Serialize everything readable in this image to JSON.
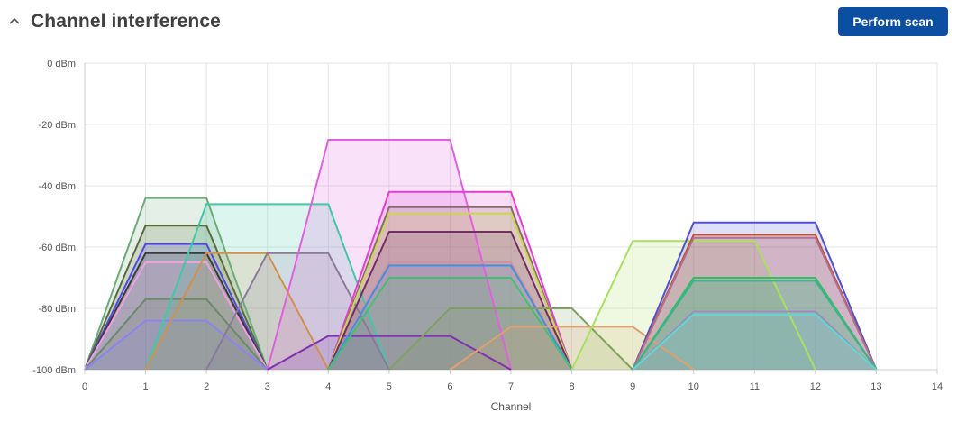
{
  "header": {
    "title": "Channel interference",
    "collapse_icon": "chevron-up-icon",
    "scan_button_label": "Perform scan",
    "scan_button_color": "#0b4ea2"
  },
  "chart_data": {
    "type": "area",
    "title": "",
    "xlabel": "Channel",
    "ylabel": "",
    "xlim": [
      0,
      14
    ],
    "ylim": [
      -100,
      0
    ],
    "x_ticks": [
      "0",
      "1",
      "2",
      "3",
      "4",
      "5",
      "6",
      "7",
      "8",
      "9",
      "10",
      "11",
      "12",
      "13",
      "14"
    ],
    "y_ticks": [
      "0 dBm",
      "-20 dBm",
      "-40 dBm",
      "-60 dBm",
      "-80 dBm",
      "-100 dBm"
    ],
    "y_tick_values": [
      0,
      -20,
      -40,
      -60,
      -80,
      -100
    ],
    "grid": true,
    "legend": "none",
    "series": [
      {
        "color": "#6aab78",
        "x": [
          0,
          1,
          2,
          3
        ],
        "y": [
          -100,
          -44,
          -44,
          -100
        ]
      },
      {
        "color": "#5a6a3a",
        "x": [
          0,
          1,
          2,
          3
        ],
        "y": [
          -100,
          -53,
          -53,
          -100
        ]
      },
      {
        "color": "#5548e0",
        "x": [
          0,
          1,
          2,
          3
        ],
        "y": [
          -100,
          -59,
          -59,
          -100
        ]
      },
      {
        "color": "#3a3a3a",
        "x": [
          0,
          1,
          2,
          3
        ],
        "y": [
          -100,
          -62,
          -62,
          -100
        ]
      },
      {
        "color": "#f0a0e0",
        "x": [
          0,
          1,
          2,
          3
        ],
        "y": [
          -100,
          -65,
          -65,
          -100
        ]
      },
      {
        "color": "#6a8a6a",
        "x": [
          0,
          1,
          2,
          3
        ],
        "y": [
          -100,
          -77,
          -77,
          -100
        ]
      },
      {
        "color": "#8a84f0",
        "x": [
          0,
          1,
          2,
          3
        ],
        "y": [
          -100,
          -84,
          -84,
          -100
        ]
      },
      {
        "color": "#40c8a8",
        "x": [
          1,
          2,
          4,
          5
        ],
        "y": [
          -100,
          -46,
          -46,
          -100
        ]
      },
      {
        "color": "#d09050",
        "x": [
          1,
          2,
          3,
          4
        ],
        "y": [
          -100,
          -62,
          -62,
          -100
        ]
      },
      {
        "color": "#8a7a9a",
        "x": [
          2,
          3,
          4,
          5
        ],
        "y": [
          -100,
          -62,
          -62,
          -100
        ]
      },
      {
        "color": "#e060e0",
        "x": [
          3,
          4,
          6,
          7
        ],
        "y": [
          -100,
          -25,
          -25,
          -100
        ]
      },
      {
        "color": "#8030b0",
        "x": [
          3,
          4,
          6,
          7
        ],
        "y": [
          -100,
          -89,
          -89,
          -100
        ]
      },
      {
        "color": "#e040d0",
        "x": [
          4,
          5,
          7,
          8
        ],
        "y": [
          -100,
          -42,
          -42,
          -100
        ]
      },
      {
        "color": "#8a6a6a",
        "x": [
          4,
          5,
          7,
          8
        ],
        "y": [
          -100,
          -47,
          -47,
          -100
        ]
      },
      {
        "color": "#c8d850",
        "x": [
          4,
          5,
          7,
          8
        ],
        "y": [
          -100,
          -49,
          -49,
          -100
        ]
      },
      {
        "color": "#703060",
        "x": [
          4,
          5,
          7,
          8
        ],
        "y": [
          -100,
          -55,
          -55,
          -100
        ]
      },
      {
        "color": "#d090a0",
        "x": [
          4,
          5,
          7,
          8
        ],
        "y": [
          -100,
          -65,
          -65,
          -100
        ]
      },
      {
        "color": "#4090e0",
        "x": [
          4,
          5,
          7,
          8
        ],
        "y": [
          -100,
          -66,
          -66,
          -100
        ]
      },
      {
        "color": "#40c070",
        "x": [
          4,
          5,
          7,
          8
        ],
        "y": [
          -100,
          -70,
          -70,
          -100
        ]
      },
      {
        "color": "#80a060",
        "x": [
          5,
          6,
          8,
          9
        ],
        "y": [
          -100,
          -80,
          -80,
          -100
        ]
      },
      {
        "color": "#e0a070",
        "x": [
          6,
          7,
          9,
          10
        ],
        "y": [
          -100,
          -86,
          -86,
          -100
        ]
      },
      {
        "color": "#a8e060",
        "x": [
          8,
          9,
          11,
          12
        ],
        "y": [
          -100,
          -58,
          -58,
          -100
        ]
      },
      {
        "color": "#5050d0",
        "x": [
          9,
          10,
          12,
          13
        ],
        "y": [
          -100,
          -52,
          -52,
          -100
        ]
      },
      {
        "color": "#c05030",
        "x": [
          9,
          10,
          12,
          13
        ],
        "y": [
          -100,
          -56,
          -56,
          -100
        ]
      },
      {
        "color": "#b07090",
        "x": [
          9,
          10,
          12,
          13
        ],
        "y": [
          -100,
          -57,
          -57,
          -100
        ]
      },
      {
        "color": "#30c060",
        "x": [
          9,
          10,
          12,
          13
        ],
        "y": [
          -100,
          -70,
          -70,
          -100
        ]
      },
      {
        "color": "#40b090",
        "x": [
          9,
          10,
          12,
          13
        ],
        "y": [
          -100,
          -71,
          -71,
          -100
        ]
      },
      {
        "color": "#9a90c0",
        "x": [
          9,
          10,
          12,
          13
        ],
        "y": [
          -100,
          -81,
          -81,
          -100
        ]
      },
      {
        "color": "#60d8d0",
        "x": [
          9,
          10,
          12,
          13
        ],
        "y": [
          -100,
          -82,
          -82,
          -100
        ]
      }
    ]
  }
}
